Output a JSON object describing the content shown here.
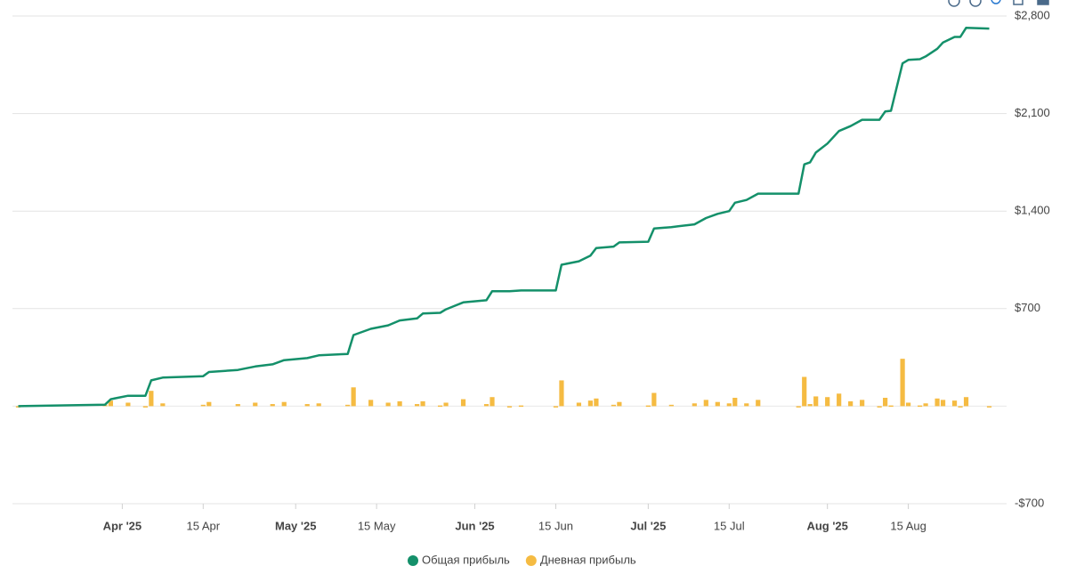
{
  "chart_data": {
    "type": "line-bar",
    "x": [
      "2025-03-14",
      "2025-03-29",
      "2025-03-30",
      "2025-04-02",
      "2025-04-05",
      "2025-04-06",
      "2025-04-08",
      "2025-04-15",
      "2025-04-16",
      "2025-04-21",
      "2025-04-24",
      "2025-04-27",
      "2025-04-29",
      "2025-05-03",
      "2025-05-05",
      "2025-05-10",
      "2025-05-11",
      "2025-05-14",
      "2025-05-17",
      "2025-05-19",
      "2025-05-22",
      "2025-05-23",
      "2025-05-26",
      "2025-05-27",
      "2025-05-30",
      "2025-06-03",
      "2025-06-04",
      "2025-06-07",
      "2025-06-09",
      "2025-06-15",
      "2025-06-16",
      "2025-06-19",
      "2025-06-21",
      "2025-06-22",
      "2025-06-25",
      "2025-06-26",
      "2025-07-01",
      "2025-07-02",
      "2025-07-05",
      "2025-07-09",
      "2025-07-11",
      "2025-07-13",
      "2025-07-15",
      "2025-07-16",
      "2025-07-18",
      "2025-07-20",
      "2025-07-27",
      "2025-07-28",
      "2025-07-29",
      "2025-07-30",
      "2025-08-01",
      "2025-08-03",
      "2025-08-05",
      "2025-08-07",
      "2025-08-10",
      "2025-08-11",
      "2025-08-12",
      "2025-08-14",
      "2025-08-15",
      "2025-08-17",
      "2025-08-18",
      "2025-08-20",
      "2025-08-21",
      "2025-08-23",
      "2025-08-24",
      "2025-08-25",
      "2025-08-29"
    ],
    "series": [
      {
        "name": "Общая прибыль",
        "kind": "line",
        "color": "#14906a",
        "values": [
          0,
          10,
          50,
          75,
          75,
          185,
          205,
          215,
          245,
          260,
          285,
          300,
          330,
          345,
          365,
          375,
          510,
          555,
          580,
          615,
          630,
          665,
          670,
          695,
          745,
          760,
          825,
          825,
          830,
          830,
          1015,
          1040,
          1080,
          1135,
          1145,
          1175,
          1180,
          1275,
          1285,
          1305,
          1350,
          1380,
          1400,
          1460,
          1480,
          1525,
          1525,
          1735,
          1750,
          1820,
          1885,
          1975,
          2010,
          2055,
          2055,
          2115,
          2120,
          2460,
          2485,
          2490,
          2510,
          2565,
          2610,
          2650,
          2650,
          2715,
          2710
        ]
      },
      {
        "name": "Дневная прибыль",
        "kind": "bar",
        "color": "#f5bb42",
        "values": [
          0,
          10,
          40,
          25,
          0,
          110,
          20,
          10,
          30,
          15,
          25,
          15,
          30,
          15,
          20,
          10,
          135,
          45,
          25,
          35,
          15,
          35,
          5,
          25,
          50,
          15,
          65,
          0,
          5,
          0,
          185,
          25,
          40,
          55,
          10,
          30,
          5,
          95,
          10,
          20,
          45,
          30,
          20,
          60,
          20,
          45,
          0,
          210,
          15,
          70,
          65,
          90,
          35,
          45,
          0,
          60,
          5,
          340,
          25,
          5,
          20,
          55,
          45,
          40,
          0,
          65,
          -5
        ]
      }
    ],
    "xlim": [
      "2025-03-13",
      "2025-09-01"
    ],
    "xticks": [
      {
        "value": "2025-04-01",
        "label": "Apr '25"
      },
      {
        "value": "2025-04-15",
        "label": "15 Apr"
      },
      {
        "value": "2025-05-01",
        "label": "May '25"
      },
      {
        "value": "2025-05-15",
        "label": "15 May"
      },
      {
        "value": "2025-06-01",
        "label": "Jun '25"
      },
      {
        "value": "2025-06-15",
        "label": "15 Jun"
      },
      {
        "value": "2025-07-01",
        "label": "Jul '25"
      },
      {
        "value": "2025-07-15",
        "label": "15 Jul"
      },
      {
        "value": "2025-08-01",
        "label": "Aug '25"
      },
      {
        "value": "2025-08-15",
        "label": "15 Aug"
      }
    ],
    "ylim": [
      -700,
      2800
    ],
    "yticks": [
      {
        "value": -700,
        "label": "-$700"
      },
      {
        "value": 700,
        "label": "$700"
      },
      {
        "value": 1400,
        "label": "$1,400"
      },
      {
        "value": 2100,
        "label": "$2,100"
      },
      {
        "value": 2800,
        "label": "$2,800"
      }
    ],
    "grid": true
  }
}
